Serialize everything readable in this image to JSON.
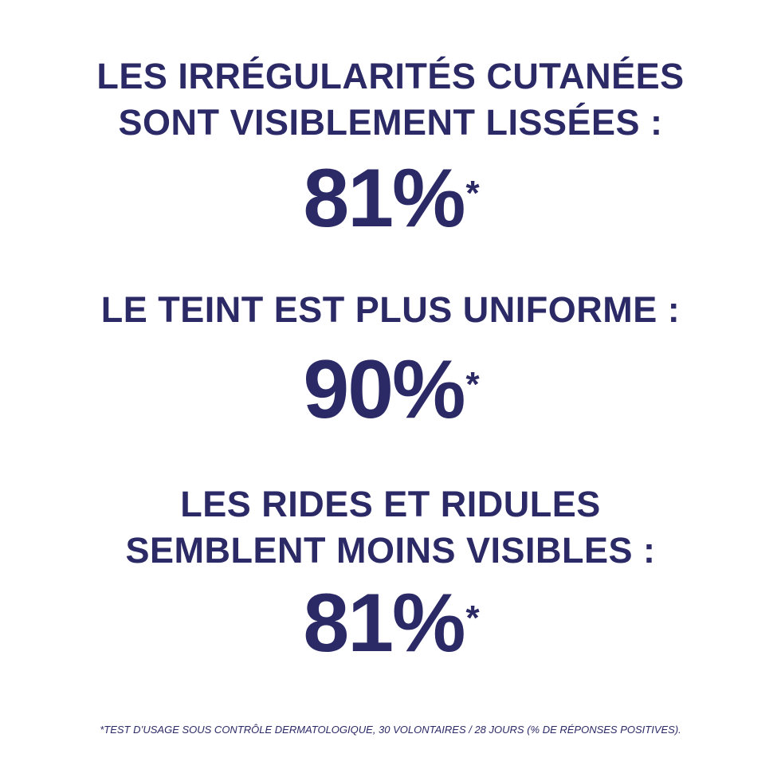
{
  "colors": {
    "text": "#2b2a66",
    "background": "#ffffff"
  },
  "claims": [
    {
      "heading_lines": [
        "LES IRRÉGULARITÉS CUTANÉES",
        "SONT VISIBLEMENT LISSÉES :"
      ],
      "value": "81%",
      "marker": "*"
    },
    {
      "heading_lines": [
        "LE TEINT EST PLUS UNIFORME :"
      ],
      "value": "90%",
      "marker": "*"
    },
    {
      "heading_lines": [
        "LES RIDES ET RIDULES",
        "SEMBLENT MOINS VISIBLES :"
      ],
      "value": "81%",
      "marker": "*"
    }
  ],
  "footnote": "*TEST D’USAGE SOUS CONTRÔLE DERMATOLOGIQUE, 30 VOLONTAIRES / 28 JOURS (% DE RÉPONSES POSITIVES)."
}
